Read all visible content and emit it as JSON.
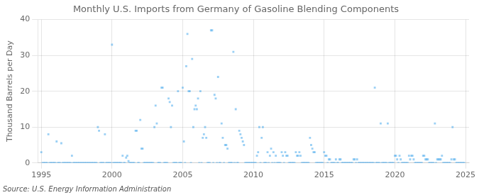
{
  "chart_data": {
    "type": "scatter",
    "title": "Monthly U.S. Imports from Germany of Gasoline Blending Components",
    "ylabel": "Thousand Barrels per Day",
    "source": "Source: U.S. Energy Information Administration",
    "marker": "square",
    "grid": true,
    "xlim": [
      1994.75,
      2025.25
    ],
    "xticks": [
      1995,
      2000,
      2005,
      2010,
      2015,
      2020,
      2025
    ],
    "ylim": [
      0,
      40
    ],
    "yticks": [
      0,
      10,
      20,
      30,
      40
    ],
    "x": [
      1995.0,
      1995.083,
      1995.167,
      1995.25,
      1995.333,
      1995.417,
      1995.5,
      1995.583,
      1995.667,
      1995.75,
      1995.833,
      1995.917,
      1996.0,
      1996.083,
      1996.167,
      1996.25,
      1996.333,
      1996.417,
      1996.5,
      1996.583,
      1996.667,
      1996.75,
      1996.833,
      1996.917,
      1997.0,
      1997.083,
      1997.167,
      1997.25,
      1997.333,
      1997.417,
      1997.5,
      1997.583,
      1997.667,
      1997.75,
      1997.833,
      1997.917,
      1998.0,
      1998.083,
      1998.167,
      1998.25,
      1998.333,
      1998.417,
      1998.5,
      1998.583,
      1998.667,
      1998.75,
      1998.833,
      1998.917,
      1999.0,
      1999.083,
      1999.167,
      1999.25,
      1999.333,
      1999.417,
      1999.5,
      1999.583,
      1999.667,
      1999.75,
      1999.833,
      1999.917,
      2000.0,
      2000.083,
      2000.167,
      2000.25,
      2000.333,
      2000.417,
      2000.5,
      2000.583,
      2000.667,
      2000.75,
      2000.833,
      2000.917,
      2001.0,
      2001.083,
      2001.167,
      2001.25,
      2001.333,
      2001.417,
      2001.5,
      2001.583,
      2001.667,
      2001.75,
      2001.833,
      2001.917,
      2002.0,
      2002.083,
      2002.167,
      2002.25,
      2002.333,
      2002.417,
      2002.5,
      2002.583,
      2002.667,
      2002.75,
      2002.833,
      2002.917,
      2003.0,
      2003.083,
      2003.167,
      2003.25,
      2003.333,
      2003.417,
      2003.5,
      2003.583,
      2003.667,
      2003.75,
      2003.833,
      2003.917,
      2004.0,
      2004.083,
      2004.167,
      2004.25,
      2004.333,
      2004.417,
      2004.5,
      2004.583,
      2004.667,
      2004.75,
      2004.833,
      2004.917,
      2005.0,
      2005.083,
      2005.167,
      2005.25,
      2005.333,
      2005.417,
      2005.5,
      2005.583,
      2005.667,
      2005.75,
      2005.833,
      2005.917,
      2006.0,
      2006.083,
      2006.167,
      2006.25,
      2006.333,
      2006.417,
      2006.5,
      2006.583,
      2006.667,
      2006.75,
      2006.833,
      2006.917,
      2007.0,
      2007.083,
      2007.167,
      2007.25,
      2007.333,
      2007.417,
      2007.5,
      2007.583,
      2007.667,
      2007.75,
      2007.833,
      2007.917,
      2008.0,
      2008.083,
      2008.167,
      2008.25,
      2008.333,
      2008.417,
      2008.5,
      2008.583,
      2008.667,
      2008.75,
      2008.833,
      2008.917,
      2009.0,
      2009.083,
      2009.167,
      2009.25,
      2009.333,
      2009.417,
      2009.5,
      2009.583,
      2009.667,
      2009.75,
      2009.833,
      2009.917,
      2010.0,
      2010.083,
      2010.167,
      2010.25,
      2010.333,
      2010.417,
      2010.5,
      2010.583,
      2010.667,
      2010.75,
      2010.833,
      2010.917,
      2011.0,
      2011.083,
      2011.167,
      2011.25,
      2011.333,
      2011.417,
      2011.5,
      2011.583,
      2011.667,
      2011.75,
      2011.833,
      2011.917,
      2012.0,
      2012.083,
      2012.167,
      2012.25,
      2012.333,
      2012.417,
      2012.5,
      2012.583,
      2012.667,
      2012.75,
      2012.833,
      2012.917,
      2013.0,
      2013.083,
      2013.167,
      2013.25,
      2013.333,
      2013.417,
      2013.5,
      2013.583,
      2013.667,
      2013.75,
      2013.833,
      2013.917,
      2014.0,
      2014.083,
      2014.167,
      2014.25,
      2014.333,
      2014.417,
      2014.5,
      2014.583,
      2014.667,
      2014.75,
      2014.833,
      2014.917,
      2015.0,
      2015.083,
      2015.167,
      2015.25,
      2015.333,
      2015.417,
      2015.5,
      2015.583,
      2015.667,
      2015.75,
      2015.833,
      2015.917,
      2016.0,
      2016.083,
      2016.167,
      2016.25,
      2016.333,
      2016.417,
      2016.5,
      2016.583,
      2016.667,
      2016.75,
      2016.833,
      2016.917,
      2017.0,
      2017.083,
      2017.167,
      2017.25,
      2017.333,
      2017.417,
      2017.5,
      2017.583,
      2017.667,
      2017.75,
      2017.833,
      2017.917,
      2018.0,
      2018.083,
      2018.167,
      2018.25,
      2018.333,
      2018.417,
      2018.5,
      2018.583,
      2018.667,
      2018.75,
      2018.833,
      2018.917,
      2019.0,
      2019.083,
      2019.167,
      2019.25,
      2019.333,
      2019.417,
      2019.5,
      2019.583,
      2019.667,
      2019.75,
      2019.833,
      2019.917,
      2020.0,
      2020.083,
      2020.167,
      2020.25,
      2020.333,
      2020.417,
      2020.5,
      2020.583,
      2020.667,
      2020.75,
      2020.833,
      2020.917,
      2021.0,
      2021.083,
      2021.167,
      2021.25,
      2021.333,
      2021.417,
      2021.5,
      2021.583,
      2021.667,
      2021.75,
      2021.833,
      2021.917,
      2022.0,
      2022.083,
      2022.167,
      2022.25,
      2022.333,
      2022.417,
      2022.5,
      2022.583,
      2022.667,
      2022.75,
      2022.833,
      2022.917,
      2023.0,
      2023.083,
      2023.167,
      2023.25,
      2023.333,
      2023.417,
      2023.5,
      2023.583,
      2023.667,
      2023.75,
      2023.833,
      2023.917,
      2024.0,
      2024.083,
      2024.167,
      2024.25,
      2024.333,
      2024.417,
      2024.5,
      2024.583,
      2024.667,
      2024.75,
      2024.833,
      2024.917
    ],
    "values": [
      3.0,
      0.0,
      0.0,
      0.0,
      0.0,
      0.0,
      8.0,
      0.0,
      0.0,
      0.0,
      0.0,
      0.0,
      0.0,
      6.0,
      0.0,
      0.0,
      0.0,
      5.5,
      0.0,
      0.0,
      0.0,
      0.0,
      0.0,
      0.0,
      0.0,
      0.0,
      2.0,
      0.0,
      0.0,
      0.0,
      0.0,
      0.0,
      0.0,
      0.0,
      0.0,
      0.0,
      0.0,
      0.0,
      0.0,
      0.0,
      0.0,
      0.0,
      0.0,
      0.0,
      0.0,
      0.0,
      0.0,
      0.0,
      10.0,
      9.0,
      0.0,
      0.0,
      0.0,
      0.0,
      8.0,
      0.0,
      0.0,
      0.0,
      0.0,
      0.0,
      33.0,
      0.0,
      0.0,
      0.0,
      0.0,
      0.0,
      0.0,
      0.0,
      0.0,
      2.0,
      0.0,
      0.0,
      1.5,
      2.0,
      0.5,
      0.0,
      0.0,
      0.0,
      0.0,
      0.0,
      9.0,
      9.0,
      0.0,
      0.0,
      12.0,
      4.0,
      4.0,
      0.0,
      0.0,
      0.0,
      0.0,
      0.0,
      0.0,
      0.0,
      0.0,
      0.0,
      10.0,
      16.0,
      11.0,
      0.0,
      0.0,
      0.0,
      21.0,
      21.0,
      0.0,
      0.0,
      0.0,
      0.0,
      18.0,
      17.0,
      10.0,
      16.0,
      0.0,
      0.0,
      0.0,
      0.0,
      20.0,
      0.0,
      0.0,
      0.0,
      21.0,
      6.0,
      0.0,
      27.0,
      36.0,
      20.0,
      20.0,
      0.0,
      29.0,
      10.0,
      15.0,
      16.0,
      15.0,
      18.0,
      0.0,
      20.0,
      0.0,
      7.0,
      8.0,
      10.0,
      7.0,
      0.0,
      0.0,
      0.0,
      37.0,
      37.0,
      0.0,
      19.0,
      18.0,
      0.0,
      24.0,
      0.0,
      0.0,
      11.0,
      7.0,
      0.0,
      5.0,
      5.0,
      4.0,
      0.0,
      0.0,
      0.0,
      0.0,
      31.0,
      0.0,
      15.0,
      0.0,
      0.0,
      9.0,
      8.0,
      7.0,
      6.0,
      5.0,
      0.0,
      0.0,
      0.0,
      0.0,
      0.0,
      0.0,
      0.0,
      0.0,
      0.0,
      0.0,
      2.0,
      3.0,
      10.0,
      0.0,
      7.0,
      10.0,
      0.0,
      0.0,
      0.0,
      3.0,
      0.0,
      2.0,
      4.0,
      0.0,
      3.0,
      0.0,
      2.0,
      0.0,
      0.0,
      0.0,
      0.0,
      3.0,
      2.0,
      0.0,
      3.0,
      2.0,
      2.0,
      0.0,
      0.0,
      0.0,
      0.0,
      0.0,
      0.0,
      3.0,
      2.0,
      2.0,
      3.0,
      2.0,
      0.0,
      0.0,
      0.0,
      0.0,
      0.0,
      0.0,
      0.0,
      7.0,
      5.0,
      4.0,
      3.0,
      3.0,
      0.0,
      0.0,
      0.0,
      0.0,
      0.0,
      0.0,
      0.0,
      3.0,
      2.0,
      2.0,
      0.0,
      1.0,
      1.0,
      0.0,
      0.0,
      0.0,
      0.0,
      1.0,
      0.0,
      0.0,
      1.0,
      1.0,
      0.0,
      0.0,
      0.0,
      0.0,
      0.0,
      0.0,
      0.0,
      0.0,
      0.0,
      0.0,
      1.0,
      1.0,
      0.0,
      1.0,
      0.0,
      0.0,
      0.0,
      0.0,
      0.0,
      0.0,
      0.0,
      0.0,
      0.0,
      0.0,
      0.0,
      0.0,
      0.0,
      0.0,
      21.0,
      0.0,
      0.0,
      0.0,
      0.0,
      11.0,
      0.0,
      0.0,
      0.0,
      0.0,
      0.0,
      11.0,
      0.0,
      0.0,
      0.0,
      0.0,
      0.0,
      2.0,
      2.0,
      1.0,
      0.0,
      2.0,
      1.0,
      0.0,
      0.0,
      0.0,
      0.0,
      0.0,
      0.0,
      2.0,
      1.0,
      2.0,
      2.0,
      1.0,
      0.0,
      0.0,
      0.0,
      0.0,
      0.0,
      0.0,
      0.0,
      2.0,
      2.0,
      1.0,
      1.0,
      1.0,
      0.0,
      0.0,
      0.0,
      0.0,
      0.0,
      11.0,
      0.0,
      1.0,
      1.0,
      1.0,
      1.0,
      2.0,
      0.0,
      0.0,
      0.0,
      0.0,
      0.0,
      0.0,
      0.0,
      1.0,
      10.0,
      1.0,
      1.0,
      0.0,
      0.0,
      0.0,
      0.0,
      0.0,
      0.0,
      0.0,
      0.0
    ]
  }
}
